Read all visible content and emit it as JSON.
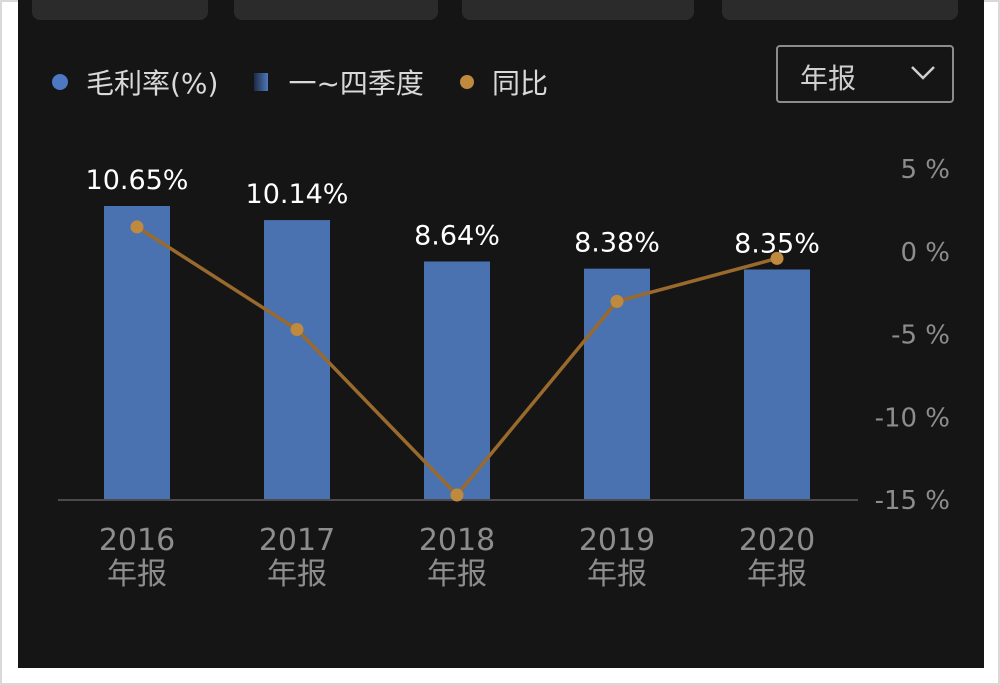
{
  "legend": {
    "gross_margin": "毛利率(%)",
    "quarters": "一~四季度",
    "yoy": "同比"
  },
  "selector": {
    "value": "年报"
  },
  "colors": {
    "bar": "#4a72b0",
    "line": "#9a6a2d",
    "point": "#c08a3e",
    "text": "#ffffff"
  },
  "chart_data": {
    "type": "bar",
    "categories": [
      "2016\n年报",
      "2017\n年报",
      "2018\n年报",
      "2019\n年报",
      "2020\n年报"
    ],
    "series": [
      {
        "name": "毛利率(%)",
        "type": "bar",
        "values": [
          10.65,
          10.14,
          8.64,
          8.38,
          8.35
        ],
        "labels": [
          "10.65%",
          "10.14%",
          "8.64%",
          "8.38%",
          "8.35%"
        ]
      },
      {
        "name": "同比",
        "type": "line",
        "axis": "right",
        "values": [
          1.5,
          -4.7,
          -14.7,
          -3.0,
          -0.4
        ]
      }
    ],
    "bar_ylim": [
      0,
      11.5
    ],
    "right_axis": {
      "ticks": [
        "5 %",
        "0 %",
        "-5 %",
        "-10 %",
        "-15 %"
      ],
      "tick_values": [
        5,
        0,
        -5,
        -10,
        -15
      ],
      "ylim": [
        -15,
        5
      ]
    }
  }
}
